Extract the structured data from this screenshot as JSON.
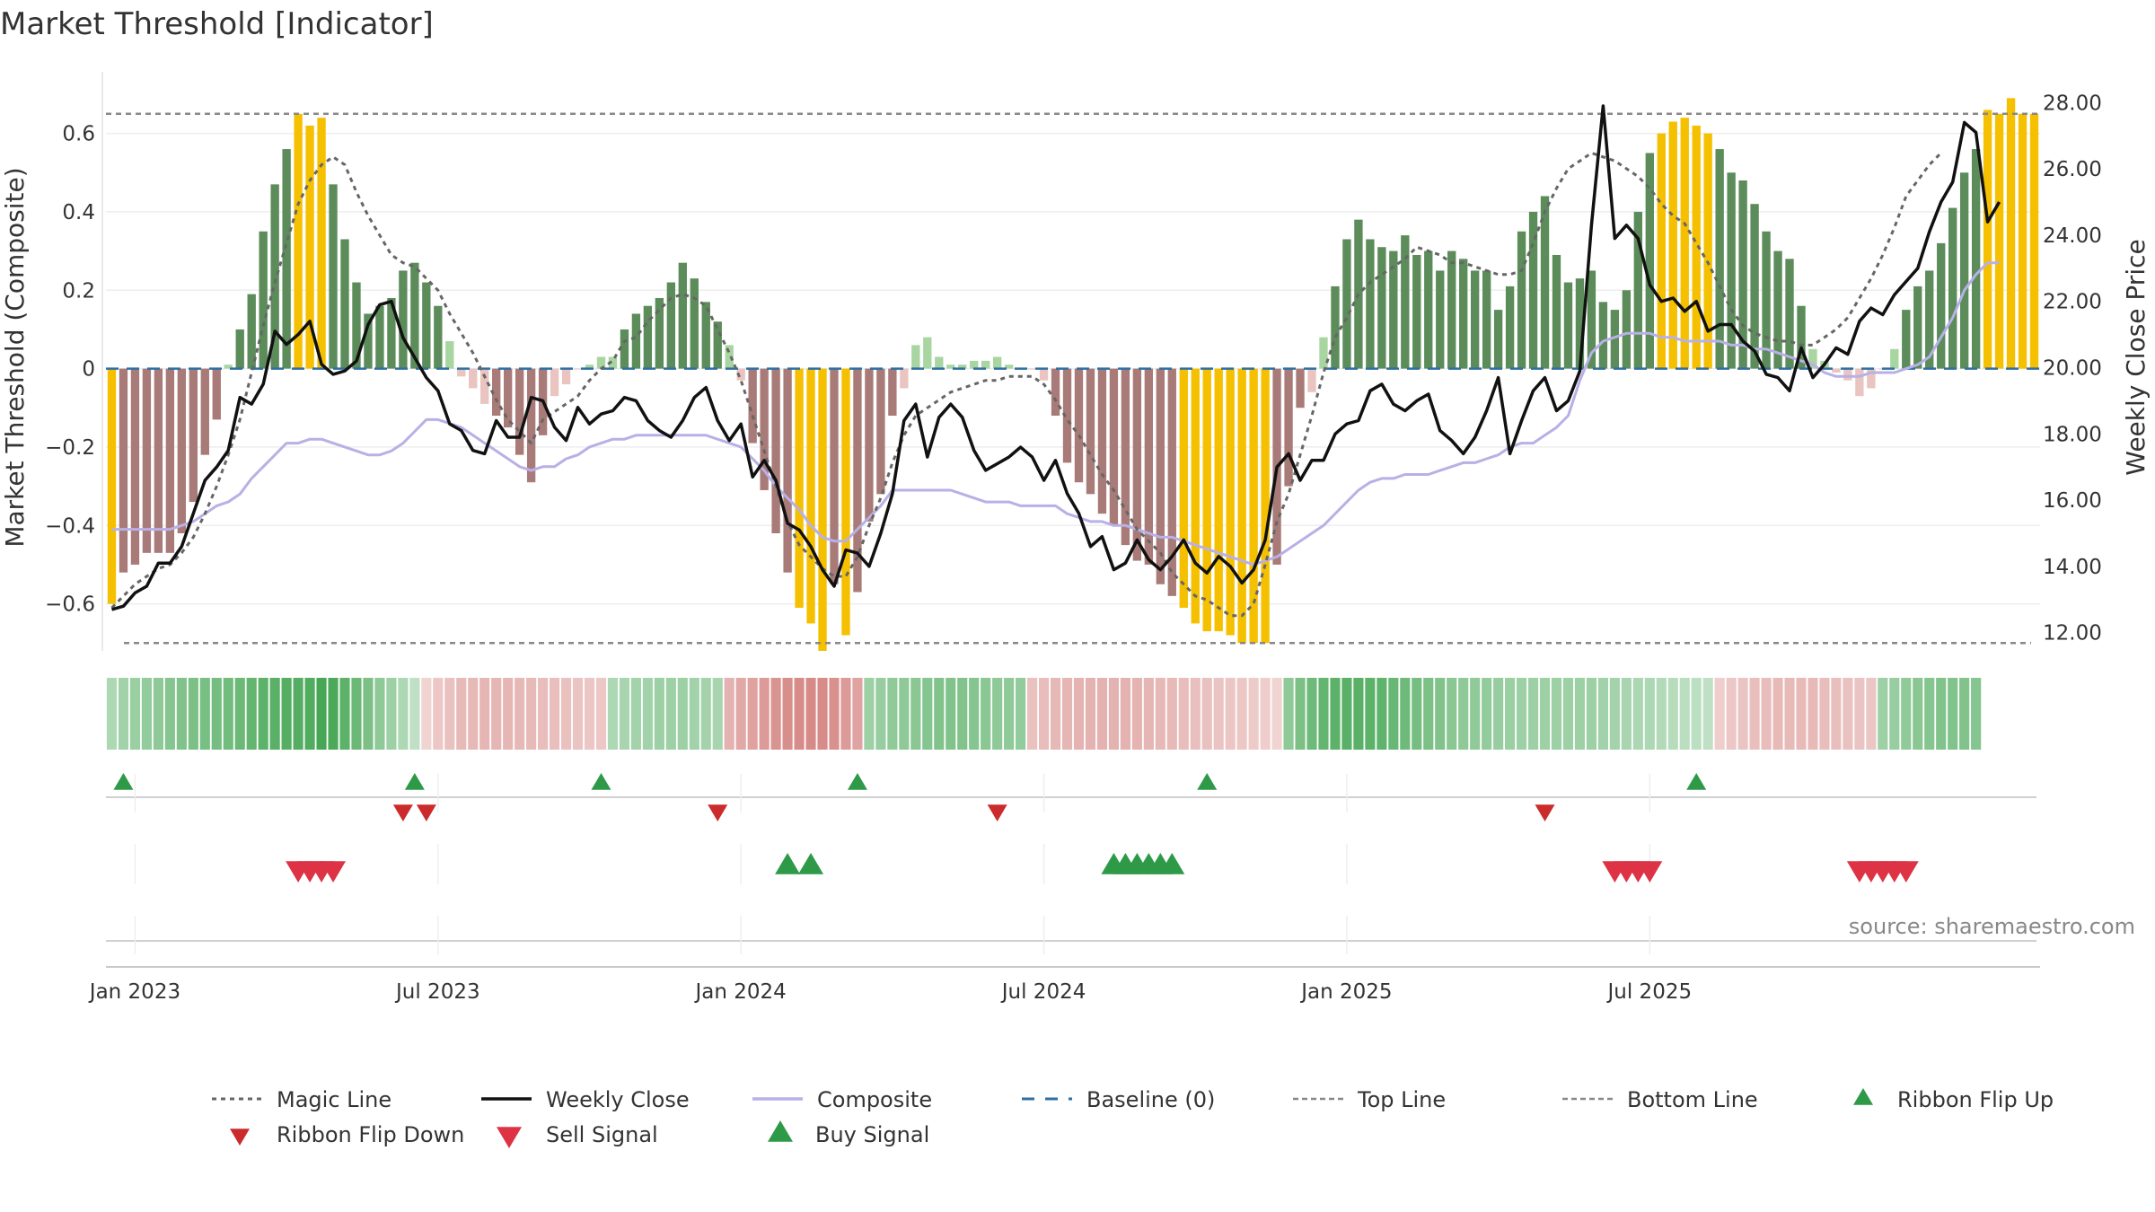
{
  "chart_data": {
    "type": "bar+line",
    "title": "Market Threshold [Indicator]",
    "ylabel_left": "Market Threshold (Composite)",
    "ylabel_right": "Weekly Close Price",
    "source": "source: sharemaestro.com",
    "ylim_left": [
      -0.72,
      0.78
    ],
    "ylim_right": [
      11.45,
      29.2
    ],
    "left_ticks": [
      {
        "v": 0.6,
        "label": "0.6"
      },
      {
        "v": 0.4,
        "label": "0.4"
      },
      {
        "v": 0.2,
        "label": "0.2"
      },
      {
        "v": 0,
        "label": "0"
      },
      {
        "v": -0.2,
        "label": "−0.2"
      },
      {
        "v": -0.4,
        "label": "−0.4"
      },
      {
        "v": -0.6,
        "label": "−0.6"
      }
    ],
    "right_ticks": [
      {
        "v": 28,
        "label": "28.00"
      },
      {
        "v": 26,
        "label": "26.00"
      },
      {
        "v": 24,
        "label": "24.00"
      },
      {
        "v": 22,
        "label": "22.00"
      },
      {
        "v": 20,
        "label": "20.00"
      },
      {
        "v": 18,
        "label": "18.00"
      },
      {
        "v": 16,
        "label": "16.00"
      },
      {
        "v": 14,
        "label": "14.00"
      },
      {
        "v": 12,
        "label": "12.00"
      }
    ],
    "x_ticks": [
      {
        "week": 2,
        "label": "Jan 2023"
      },
      {
        "week": 28,
        "label": "Jul 2023"
      },
      {
        "week": 54,
        "label": "Jan 2024"
      },
      {
        "week": 80,
        "label": "Jul 2024"
      },
      {
        "week": 106,
        "label": "Jan 2025"
      },
      {
        "week": 132,
        "label": "Jul 2025"
      }
    ],
    "composite_bars": [
      -0.6,
      -0.52,
      -0.5,
      -0.47,
      -0.47,
      -0.47,
      -0.42,
      -0.34,
      -0.22,
      -0.13,
      0.01,
      0.1,
      0.19,
      0.35,
      0.47,
      0.56,
      0.65,
      0.62,
      0.64,
      0.47,
      0.33,
      0.22,
      0.14,
      0.16,
      0.18,
      0.25,
      0.27,
      0.22,
      0.16,
      0.07,
      -0.02,
      -0.05,
      -0.09,
      -0.12,
      -0.15,
      -0.22,
      -0.29,
      -0.17,
      -0.07,
      -0.04,
      0,
      0.01,
      0.03,
      0.03,
      0.1,
      0.14,
      0.16,
      0.18,
      0.22,
      0.27,
      0.23,
      0.17,
      0.12,
      0.06,
      -0.03,
      -0.19,
      -0.31,
      -0.42,
      -0.52,
      -0.61,
      -0.65,
      -0.72,
      -0.55,
      -0.68,
      -0.57,
      -0.39,
      -0.32,
      -0.12,
      -0.05,
      0.06,
      0.08,
      0.03,
      0.01,
      0.01,
      0.02,
      0.02,
      0.03,
      0.01,
      0,
      0,
      -0.03,
      -0.12,
      -0.24,
      -0.29,
      -0.32,
      -0.37,
      -0.4,
      -0.45,
      -0.49,
      -0.5,
      -0.55,
      -0.58,
      -0.61,
      -0.65,
      -0.67,
      -0.67,
      -0.68,
      -0.7,
      -0.7,
      -0.7,
      -0.5,
      -0.3,
      -0.1,
      -0.06,
      0.08,
      0.21,
      0.33,
      0.38,
      0.33,
      0.31,
      0.3,
      0.34,
      0.29,
      0.3,
      0.25,
      0.3,
      0.28,
      0.25,
      0.25,
      0.15,
      0.21,
      0.35,
      0.4,
      0.44,
      0.29,
      0.22,
      0.23,
      0.25,
      0.17,
      0.15,
      0.2,
      0.4,
      0.55,
      0.6,
      0.63,
      0.64,
      0.62,
      0.6,
      0.56,
      0.5,
      0.48,
      0.42,
      0.35,
      0.3,
      0.28,
      0.16,
      0.05,
      0.02,
      -0.01,
      -0.03,
      -0.07,
      -0.05,
      0.0,
      0.05,
      0.15,
      0.21,
      0.25,
      0.32,
      0.41,
      0.5,
      0.56,
      0.66,
      0.65,
      0.69,
      0.65,
      0.65
    ],
    "bar_colors": {
      "strong_up": "#5b8c5a",
      "weak_up": "#a8d5a0",
      "strong_down": "#a87b78",
      "weak_down": "#e9c4c0",
      "extreme": "#f5c000"
    },
    "bar_thresholds": {
      "extreme": 0.6,
      "strong": 0.1
    },
    "weekly_close": [
      12.7,
      12.8,
      13.2,
      13.4,
      14.1,
      14.1,
      14.6,
      15.6,
      16.6,
      17.0,
      17.5,
      19.1,
      18.9,
      19.5,
      21.1,
      20.7,
      21.0,
      21.4,
      20.1,
      19.8,
      19.9,
      20.2,
      21.3,
      21.9,
      22.0,
      20.9,
      20.3,
      19.7,
      19.3,
      18.3,
      18.1,
      17.5,
      17.4,
      18.4,
      17.9,
      17.9,
      19.1,
      19.0,
      18.2,
      17.8,
      18.8,
      18.3,
      18.6,
      18.7,
      19.1,
      19.0,
      18.4,
      18.1,
      17.9,
      18.4,
      19.1,
      19.4,
      18.4,
      17.8,
      18.3,
      16.7,
      17.2,
      16.6,
      15.3,
      15.1,
      14.6,
      13.9,
      13.4,
      14.5,
      14.4,
      14.0,
      15.0,
      16.2,
      18.4,
      18.9,
      17.3,
      18.5,
      18.9,
      18.5,
      17.5,
      16.9,
      17.1,
      17.3,
      17.6,
      17.3,
      16.6,
      17.2,
      16.2,
      15.6,
      14.6,
      14.9,
      13.9,
      14.1,
      14.8,
      14.2,
      13.9,
      14.3,
      14.8,
      14.1,
      13.8,
      14.3,
      14.0,
      13.5,
      13.9,
      14.8,
      17.0,
      17.4,
      16.6,
      17.2,
      17.2,
      18.0,
      18.3,
      18.4,
      19.3,
      19.5,
      18.9,
      18.7,
      19.0,
      19.2,
      18.1,
      17.8,
      17.4,
      17.9,
      18.7,
      19.7,
      17.4,
      18.4,
      19.3,
      19.7,
      18.7,
      19.0,
      19.9,
      24.3,
      27.9,
      23.9,
      24.3,
      23.9,
      22.5,
      22.0,
      22.1,
      21.7,
      22.0,
      21.1,
      21.3,
      21.3,
      20.8,
      20.5,
      19.8,
      19.7,
      19.3,
      20.6,
      19.7,
      20.1,
      20.6,
      20.4,
      21.4,
      21.8,
      21.6,
      22.2,
      22.6,
      23.0,
      24.1,
      25.0,
      25.6,
      27.4,
      27.1,
      24.4,
      25.0
    ],
    "composite_line": [
      -0.41,
      -0.41,
      -0.41,
      -0.41,
      -0.41,
      -0.41,
      -0.4,
      -0.39,
      -0.37,
      -0.35,
      -0.34,
      -0.32,
      -0.28,
      -0.25,
      -0.22,
      -0.19,
      -0.19,
      -0.18,
      -0.18,
      -0.19,
      -0.2,
      -0.21,
      -0.22,
      -0.22,
      -0.21,
      -0.19,
      -0.16,
      -0.13,
      -0.13,
      -0.14,
      -0.15,
      -0.17,
      -0.19,
      -0.21,
      -0.23,
      -0.25,
      -0.26,
      -0.25,
      -0.25,
      -0.23,
      -0.22,
      -0.2,
      -0.19,
      -0.18,
      -0.18,
      -0.17,
      -0.17,
      -0.17,
      -0.17,
      -0.17,
      -0.17,
      -0.17,
      -0.18,
      -0.19,
      -0.2,
      -0.23,
      -0.26,
      -0.3,
      -0.33,
      -0.36,
      -0.4,
      -0.43,
      -0.44,
      -0.44,
      -0.41,
      -0.38,
      -0.35,
      -0.31,
      -0.31,
      -0.31,
      -0.31,
      -0.31,
      -0.31,
      -0.32,
      -0.33,
      -0.34,
      -0.34,
      -0.34,
      -0.35,
      -0.35,
      -0.35,
      -0.35,
      -0.37,
      -0.38,
      -0.39,
      -0.39,
      -0.4,
      -0.4,
      -0.41,
      -0.42,
      -0.43,
      -0.43,
      -0.44,
      -0.45,
      -0.46,
      -0.47,
      -0.48,
      -0.49,
      -0.5,
      -0.49,
      -0.48,
      -0.46,
      -0.44,
      -0.42,
      -0.4,
      -0.37,
      -0.34,
      -0.31,
      -0.29,
      -0.28,
      -0.28,
      -0.27,
      -0.27,
      -0.27,
      -0.26,
      -0.25,
      -0.24,
      -0.24,
      -0.23,
      -0.22,
      -0.2,
      -0.19,
      -0.19,
      -0.17,
      -0.15,
      -0.12,
      -0.03,
      0.04,
      0.07,
      0.08,
      0.09,
      0.09,
      0.09,
      0.08,
      0.08,
      0.07,
      0.07,
      0.07,
      0.07,
      0.06,
      0.06,
      0.05,
      0.05,
      0.04,
      0.03,
      0.02,
      0.01,
      -0.01,
      -0.02,
      -0.02,
      -0.02,
      -0.01,
      -0.01,
      -0.01,
      0.0,
      0.01,
      0.03,
      0.08,
      0.13,
      0.2,
      0.24,
      0.27,
      0.27
    ],
    "magic_line": [
      -0.61,
      -0.58,
      -0.55,
      -0.53,
      -0.51,
      -0.5,
      -0.47,
      -0.43,
      -0.37,
      -0.3,
      -0.22,
      -0.13,
      -0.01,
      0.11,
      0.22,
      0.32,
      0.42,
      0.48,
      0.52,
      0.54,
      0.52,
      0.45,
      0.39,
      0.34,
      0.29,
      0.27,
      0.26,
      0.23,
      0.2,
      0.14,
      0.09,
      0.04,
      -0.02,
      -0.08,
      -0.13,
      -0.16,
      -0.19,
      -0.13,
      -0.11,
      -0.09,
      -0.07,
      -0.03,
      0.0,
      0.02,
      0.07,
      0.08,
      0.12,
      0.15,
      0.18,
      0.19,
      0.18,
      0.16,
      0.1,
      0.04,
      -0.03,
      -0.12,
      -0.21,
      -0.3,
      -0.39,
      -0.45,
      -0.48,
      -0.51,
      -0.53,
      -0.53,
      -0.48,
      -0.4,
      -0.33,
      -0.24,
      -0.17,
      -0.12,
      -0.1,
      -0.08,
      -0.06,
      -0.05,
      -0.04,
      -0.03,
      -0.03,
      -0.02,
      -0.02,
      -0.02,
      -0.04,
      -0.08,
      -0.13,
      -0.17,
      -0.22,
      -0.27,
      -0.31,
      -0.36,
      -0.41,
      -0.44,
      -0.47,
      -0.52,
      -0.55,
      -0.58,
      -0.59,
      -0.61,
      -0.63,
      -0.63,
      -0.6,
      -0.5,
      -0.39,
      -0.32,
      -0.22,
      -0.12,
      -0.01,
      0.08,
      0.13,
      0.19,
      0.22,
      0.24,
      0.26,
      0.28,
      0.31,
      0.3,
      0.29,
      0.27,
      0.27,
      0.26,
      0.25,
      0.24,
      0.24,
      0.25,
      0.32,
      0.4,
      0.46,
      0.51,
      0.53,
      0.55,
      0.54,
      0.53,
      0.51,
      0.49,
      0.46,
      0.42,
      0.39,
      0.37,
      0.32,
      0.27,
      0.21,
      0.15,
      0.11,
      0.09,
      0.08,
      0.07,
      0.07,
      0.06,
      0.06,
      0.08,
      0.1,
      0.13,
      0.18,
      0.23,
      0.29,
      0.36,
      0.44,
      0.48,
      0.52,
      0.55
    ],
    "top_line": 0.65,
    "bottom_line": -0.7,
    "baseline": 0,
    "ribbon": [
      0.3,
      0.38,
      0.42,
      0.46,
      0.5,
      0.54,
      0.58,
      0.6,
      0.62,
      0.64,
      0.66,
      0.7,
      0.74,
      0.78,
      0.8,
      0.82,
      0.84,
      0.86,
      0.9,
      0.88,
      0.78,
      0.7,
      0.6,
      0.5,
      0.4,
      0.3,
      0.2,
      -0.2,
      -0.3,
      -0.36,
      -0.42,
      -0.44,
      -0.46,
      -0.46,
      -0.46,
      -0.44,
      -0.42,
      -0.4,
      -0.38,
      -0.36,
      -0.34,
      -0.32,
      -0.3,
      0.3,
      0.34,
      0.36,
      0.38,
      0.4,
      0.4,
      0.4,
      0.38,
      0.36,
      0.34,
      -0.5,
      -0.58,
      -0.64,
      -0.7,
      -0.76,
      -0.8,
      -0.82,
      -0.84,
      -0.82,
      -0.78,
      -0.7,
      -0.62,
      0.4,
      0.44,
      0.48,
      0.5,
      0.52,
      0.54,
      0.56,
      0.56,
      0.56,
      0.54,
      0.52,
      0.5,
      0.48,
      0.46,
      -0.36,
      -0.4,
      -0.44,
      -0.46,
      -0.48,
      -0.5,
      -0.5,
      -0.5,
      -0.5,
      -0.48,
      -0.46,
      -0.44,
      -0.42,
      -0.4,
      -0.38,
      -0.36,
      -0.34,
      -0.32,
      -0.3,
      -0.28,
      -0.26,
      -0.2,
      0.5,
      0.6,
      0.68,
      0.74,
      0.78,
      0.8,
      0.8,
      0.78,
      0.76,
      0.72,
      0.68,
      0.64,
      0.6,
      0.56,
      0.52,
      0.5,
      0.48,
      0.46,
      0.44,
      0.42,
      0.4,
      0.4,
      0.4,
      0.4,
      0.4,
      0.4,
      0.4,
      0.38,
      0.36,
      0.34,
      0.32,
      0.3,
      0.28,
      0.26,
      0.24,
      0.22,
      0.2,
      -0.26,
      -0.3,
      -0.34,
      -0.38,
      -0.4,
      -0.42,
      -0.42,
      -0.42,
      -0.42,
      -0.4,
      -0.38,
      -0.36,
      -0.34,
      -0.32,
      0.4,
      0.44,
      0.48,
      0.52,
      0.54,
      0.56,
      0.56,
      0.56,
      0.54
    ],
    "ribbon_colors": {
      "positive_rgb": [
        56,
        160,
        72
      ],
      "negative_rgb": [
        208,
        120,
        116
      ]
    },
    "ribbon_flip_up": [
      1,
      26,
      42,
      64,
      94,
      136
    ],
    "ribbon_flip_down": [
      25,
      27,
      52,
      76,
      123
    ],
    "buy_signal": [
      58,
      60,
      86,
      87,
      88,
      89,
      90,
      91
    ],
    "sell_signal": [
      16,
      17,
      18,
      19,
      129,
      130,
      131,
      132,
      150,
      151,
      152,
      153,
      154
    ],
    "colors": {
      "weekly_close": "#111111",
      "composite": "#b8b0e6",
      "magic": "#666666",
      "baseline": "#2e6fa3",
      "top_bottom": "#888888",
      "flip_up": "#2e9a48",
      "flip_down": "#cc2b2b",
      "buy": "#2e9a48",
      "sell": "#dd3344"
    },
    "legend": [
      {
        "key": "magic",
        "label": "Magic Line"
      },
      {
        "key": "close",
        "label": "Weekly Close"
      },
      {
        "key": "composite",
        "label": "Composite"
      },
      {
        "key": "baseline",
        "label": "Baseline (0)"
      },
      {
        "key": "top",
        "label": "Top Line"
      },
      {
        "key": "bottom",
        "label": "Bottom Line"
      },
      {
        "key": "flip_up",
        "label": "Ribbon Flip Up"
      },
      {
        "key": "flip_down",
        "label": "Ribbon Flip Down"
      },
      {
        "key": "sell",
        "label": "Sell Signal"
      },
      {
        "key": "buy",
        "label": "Buy Signal"
      }
    ]
  }
}
